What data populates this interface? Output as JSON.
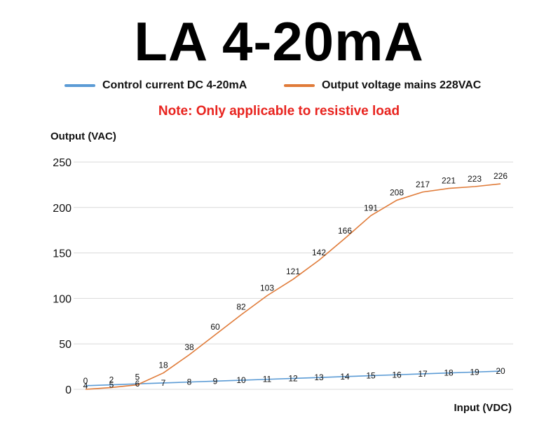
{
  "title": "LA 4-20mA",
  "note": "Note: Only applicable to resistive load",
  "colors": {
    "current": "#5b9bd5",
    "voltage": "#e07b39",
    "note": "#e8231e",
    "grid": "#d9d9d9"
  },
  "chart_data": {
    "type": "line",
    "xlabel": "Input (VDC)",
    "ylabel": "Output (VAC)",
    "ylim": [
      0,
      250
    ],
    "yticks": [
      0,
      50,
      100,
      150,
      200,
      250
    ],
    "grid": true,
    "legend_position": "top",
    "x": [
      4,
      5,
      6,
      7,
      8,
      9,
      10,
      11,
      12,
      13,
      14,
      15,
      16,
      17,
      18,
      19,
      20
    ],
    "series": [
      {
        "name": "Control current DC 4-20mA",
        "values": [
          4,
          5,
          6,
          7,
          8,
          9,
          10,
          11,
          12,
          13,
          14,
          15,
          16,
          17,
          18,
          19,
          20
        ],
        "color": "#5b9bd5"
      },
      {
        "name": "Output voltage mains 228VAC",
        "values": [
          0,
          2,
          5,
          18,
          38,
          60,
          82,
          103,
          121,
          142,
          166,
          191,
          208,
          217,
          221,
          223,
          226
        ],
        "color": "#e07b39"
      }
    ]
  }
}
